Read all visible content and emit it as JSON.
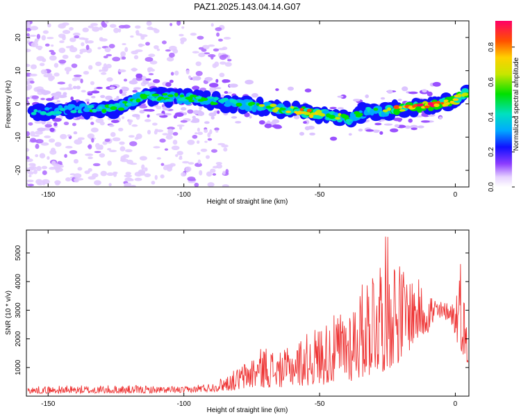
{
  "title": "PAZ1.2025.143.04.14.G07",
  "chart_data": [
    {
      "type": "heatmap",
      "name": "spectrogram",
      "xlabel": "Height of straight line (km)",
      "ylabel": "Frequency (Hz)",
      "xlim": [
        -158,
        5
      ],
      "ylim": [
        -25,
        25
      ],
      "xticks": [
        -150,
        -100,
        -50,
        0
      ],
      "yticks": [
        -20,
        -10,
        0,
        10,
        20
      ],
      "colorbar": {
        "label": "Normalized spectral amplitude",
        "range": [
          0,
          0.95
        ],
        "ticks": [
          "0.0",
          "0.2",
          "0.4",
          "0.6",
          "0.8"
        ],
        "tick_values": [
          0.0,
          0.2,
          0.4,
          0.6,
          0.8
        ]
      },
      "ridge": {
        "x": [
          -155,
          -145,
          -135,
          -125,
          -115,
          -105,
          -95,
          -85,
          -75,
          -65,
          -55,
          -45,
          -38,
          -33,
          -28,
          -20,
          -10,
          0,
          3
        ],
        "freq": [
          -2.5,
          -2.0,
          -1.5,
          -1.5,
          2.5,
          2.0,
          1.5,
          0.5,
          -0.5,
          -1.5,
          -2.5,
          -3.5,
          -4.5,
          -2.0,
          -2.5,
          -1.5,
          -0.5,
          1.0,
          3.0
        ],
        "amp": [
          0.35,
          0.35,
          0.45,
          0.5,
          0.5,
          0.45,
          0.5,
          0.45,
          0.5,
          0.6,
          0.75,
          0.55,
          0.5,
          0.45,
          0.55,
          0.75,
          0.85,
          0.8,
          0.7
        ]
      }
    },
    {
      "type": "line",
      "name": "snr",
      "xlabel": "Height of straight line (km)",
      "ylabel": "SNR (10 * v/v)",
      "xlim": [
        -158,
        5
      ],
      "ylim": [
        0,
        5800
      ],
      "xticks": [
        -150,
        -100,
        -50,
        0
      ],
      "yticks": [
        1000,
        2000,
        3000,
        4000,
        5000
      ],
      "color": "#ee3333",
      "envelope": {
        "x": [
          -158,
          -140,
          -120,
          -100,
          -90,
          -85,
          -80,
          -75,
          -70,
          -65,
          -60,
          -55,
          -50,
          -45,
          -40,
          -35,
          -30,
          -27,
          -25,
          -20,
          -15,
          -10,
          -5,
          -2,
          0,
          2,
          5
        ],
        "low": [
          100,
          100,
          100,
          120,
          150,
          180,
          200,
          250,
          300,
          300,
          350,
          350,
          400,
          400,
          450,
          600,
          700,
          800,
          900,
          1200,
          1800,
          2200,
          2600,
          2700,
          2000,
          1600,
          1000
        ],
        "high": [
          400,
          450,
          450,
          400,
          450,
          700,
          1000,
          1400,
          1800,
          1500,
          1800,
          2200,
          2500,
          2800,
          3200,
          3800,
          5000,
          5200,
          5800,
          4600,
          4200,
          3800,
          3300,
          3300,
          3500,
          5000,
          1500
        ]
      }
    }
  ]
}
